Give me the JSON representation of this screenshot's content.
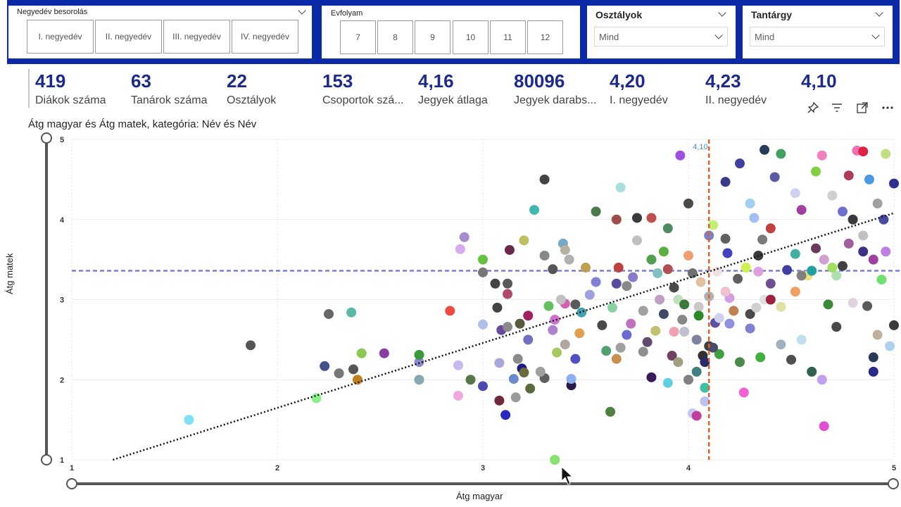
{
  "slicers": {
    "quarter": {
      "title": "Negyedév besorolás",
      "options": [
        "I. negyedév",
        "II. negyedév",
        "III. negyedév",
        "IV. negyedév"
      ]
    },
    "grade": {
      "title": "Evfolyam",
      "options": [
        "7",
        "8",
        "9",
        "10",
        "11",
        "12"
      ]
    },
    "classes": {
      "title": "Osztályok",
      "value": "Mind"
    },
    "subject": {
      "title": "Tantárgy",
      "value": "Mind"
    }
  },
  "kpis": [
    {
      "value": "419",
      "label": "Diákok száma"
    },
    {
      "value": "63",
      "label": "Tanárok száma"
    },
    {
      "value": "22",
      "label": "Osztályok"
    },
    {
      "value": "153",
      "label": "Csoportok szá..."
    },
    {
      "value": "4,16",
      "label": "Jegyek átlaga"
    },
    {
      "value": "80096",
      "label": "Jegyek darabs..."
    },
    {
      "value": "4,20",
      "label": "I. negyedév"
    },
    {
      "value": "4,23",
      "label": "II. negyedév"
    },
    {
      "value": "4,10",
      "label": ""
    }
  ],
  "visual_toolbar": [
    "pin-icon",
    "filter-icon",
    "focus-mode-icon",
    "more-options-icon"
  ],
  "colors": {
    "slicer_bar": "#0a2aa8",
    "kpi_value": "#1b2a8c",
    "avg_x_line": "#e0602a",
    "avg_y_line": "#7b7bd6",
    "trend": "#111111"
  },
  "chart_data": {
    "type": "scatter",
    "title": "Átg magyar és Átg matek, kategória: Név és Név",
    "xlabel": "Átg magyar",
    "ylabel": "Átg matek",
    "xlim": [
      1,
      5
    ],
    "ylim": [
      1,
      5
    ],
    "x_ticks": [
      "1",
      "2",
      "3",
      "4",
      "5"
    ],
    "y_ticks": [
      "1",
      "2",
      "3",
      "4",
      "5"
    ],
    "grid": true,
    "avg_x": {
      "value": 4.1,
      "label": "4,10"
    },
    "avg_y": 3.36,
    "trend_line": {
      "x": [
        1.2,
        5.0
      ],
      "y": [
        1.0,
        4.08
      ]
    },
    "points": [
      [
        1.57,
        1.5,
        "#7ee0f6"
      ],
      [
        1.87,
        2.43,
        "#555555"
      ],
      [
        2.19,
        1.77,
        "#8af08a"
      ],
      [
        2.23,
        2.17,
        "#44508c"
      ],
      [
        2.25,
        2.82,
        "#666666"
      ],
      [
        2.36,
        2.84,
        "#5ab8a8"
      ],
      [
        2.3,
        2.08,
        "#777777"
      ],
      [
        2.37,
        2.13,
        "#555555"
      ],
      [
        2.41,
        2.33,
        "#8cc850"
      ],
      [
        2.39,
        2.0,
        "#c08020"
      ],
      [
        2.52,
        2.33,
        "#8a3ca0"
      ],
      [
        2.69,
        2.22,
        "#8a8ad0"
      ],
      [
        2.69,
        2.31,
        "#3a9a3a"
      ],
      [
        2.69,
        2.0,
        "#88a8b0"
      ],
      [
        2.84,
        2.86,
        "#ee4a44"
      ],
      [
        2.88,
        2.18,
        "#c8b8f0"
      ],
      [
        2.88,
        1.8,
        "#f0a8e0"
      ],
      [
        2.89,
        3.63,
        "#d8a8f0"
      ],
      [
        2.91,
        3.78,
        "#a88ad0"
      ],
      [
        3.0,
        3.5,
        "#66c044"
      ],
      [
        3.0,
        3.34,
        "#777777"
      ],
      [
        3.0,
        2.69,
        "#b0c0ea"
      ],
      [
        3.0,
        1.92,
        "#4a4ab0"
      ],
      [
        2.94,
        2.0,
        "#587848"
      ],
      [
        3.06,
        3.2,
        "#444444"
      ],
      [
        3.07,
        2.9,
        "#444444"
      ],
      [
        3.08,
        2.21,
        "#a8a8d8"
      ],
      [
        3.08,
        1.74,
        "#6e2a3a"
      ],
      [
        3.11,
        1.56,
        "#2a2ac0"
      ],
      [
        3.09,
        2.62,
        "#6a4a9a"
      ],
      [
        3.12,
        2.66,
        "#8a8a8a"
      ],
      [
        3.12,
        3.2,
        "#5a5a5a"
      ],
      [
        3.12,
        3.07,
        "#b04a6a"
      ],
      [
        3.13,
        3.62,
        "#6a2a4a"
      ],
      [
        3.15,
        2.01,
        "#6a8ad0"
      ],
      [
        3.16,
        1.78,
        "#9a9a9a"
      ],
      [
        3.17,
        2.26,
        "#8a8a8a"
      ],
      [
        3.19,
        2.14,
        "#1a1a8a"
      ],
      [
        3.2,
        2.09,
        "#6a6a3a"
      ],
      [
        3.23,
        1.89,
        "#5a6a3a"
      ],
      [
        3.22,
        2.8,
        "#a02060"
      ],
      [
        3.2,
        3.74,
        "#c0c060"
      ],
      [
        3.25,
        4.12,
        "#40b8b0"
      ],
      [
        3.3,
        2.02,
        "#606060"
      ],
      [
        3.3,
        3.55,
        "#888888"
      ],
      [
        3.3,
        4.5,
        "#444444"
      ],
      [
        3.34,
        2.62,
        "#b080d0"
      ],
      [
        3.34,
        3.38,
        "#555555"
      ],
      [
        3.35,
        1.0,
        "#88e070"
      ],
      [
        3.36,
        2.34,
        "#a8c860"
      ],
      [
        3.39,
        3.7,
        "#78a8c8"
      ],
      [
        3.4,
        2.95,
        "#d060b0"
      ],
      [
        3.4,
        3.62,
        "#b8b0a0"
      ],
      [
        3.4,
        2.44,
        "#b0a8a0"
      ],
      [
        3.43,
        1.93,
        "#2a1a4a"
      ],
      [
        3.43,
        2.01,
        "#8ab0f0"
      ],
      [
        3.45,
        2.26,
        "#5050c0"
      ],
      [
        3.48,
        2.84,
        "#40a0b0"
      ],
      [
        3.5,
        3.4,
        "#c0a050"
      ],
      [
        3.55,
        4.1,
        "#4a7a4a"
      ],
      [
        3.55,
        3.22,
        "#8080d8"
      ],
      [
        3.6,
        2.36,
        "#50a070"
      ],
      [
        3.62,
        1.6,
        "#508040"
      ],
      [
        3.65,
        2.26,
        "#c89050"
      ],
      [
        3.67,
        4.4,
        "#a8e0e0"
      ],
      [
        3.65,
        3.2,
        "#5a4aa0"
      ],
      [
        3.65,
        4.0,
        "#a04a4a"
      ],
      [
        3.67,
        2.4,
        "#a0a0a0"
      ],
      [
        3.7,
        3.17,
        "#888888"
      ],
      [
        3.73,
        3.28,
        "#8a7acc"
      ],
      [
        3.75,
        4.02,
        "#3a3a3a"
      ],
      [
        3.75,
        3.74,
        "#c0c0c0"
      ],
      [
        3.78,
        2.35,
        "#909090"
      ],
      [
        3.8,
        2.47,
        "#604a70"
      ],
      [
        3.82,
        2.03,
        "#3a1a5a"
      ],
      [
        3.82,
        4.02,
        "#c05050"
      ],
      [
        3.85,
        3.33,
        "#80c0c0"
      ],
      [
        3.88,
        2.82,
        "#404a6a"
      ],
      [
        3.88,
        3.6,
        "#5ab040"
      ],
      [
        3.9,
        3.89,
        "#508a60"
      ],
      [
        3.9,
        3.38,
        "#b05050"
      ],
      [
        3.9,
        1.96,
        "#60d0e0"
      ],
      [
        3.92,
        2.3,
        "#704060"
      ],
      [
        3.95,
        2.22,
        "#a0a080"
      ],
      [
        3.93,
        2.6,
        "#f0a0b0"
      ],
      [
        3.95,
        3.0,
        "#c0e0c0"
      ],
      [
        3.96,
        4.8,
        "#a050e0"
      ],
      [
        3.98,
        2.6,
        "#c0c0d0"
      ],
      [
        4.0,
        3.55,
        "#f0a070"
      ],
      [
        4.0,
        2.0,
        "#808080"
      ],
      [
        4.0,
        4.2,
        "#4a4a4a"
      ],
      [
        4.02,
        1.58,
        "#c8c8f0"
      ],
      [
        4.04,
        1.55,
        "#c040a0"
      ],
      [
        4.04,
        2.1,
        "#408080"
      ],
      [
        4.04,
        2.5,
        "#8080a0"
      ],
      [
        4.05,
        2.91,
        "#c8c8c8"
      ],
      [
        4.06,
        3.22,
        "#e0c0a0"
      ],
      [
        4.07,
        2.3,
        "#303030"
      ],
      [
        4.08,
        2.22,
        "#2a2a6a"
      ],
      [
        4.08,
        1.9,
        "#40c0a0"
      ],
      [
        4.08,
        1.73,
        "#c0c0f0"
      ],
      [
        4.1,
        2.42,
        "#404040"
      ],
      [
        4.1,
        3.04,
        "#b0b0b0"
      ],
      [
        4.1,
        3.8,
        "#8080c0"
      ],
      [
        4.12,
        3.93,
        "#c0f070"
      ],
      [
        4.13,
        2.71,
        "#6050a0"
      ],
      [
        4.14,
        3.35,
        "#f0e0e0"
      ],
      [
        4.15,
        2.77,
        "#d0d0f0"
      ],
      [
        4.15,
        2.32,
        "#40a040"
      ],
      [
        4.18,
        4.47,
        "#3a3a8a"
      ],
      [
        4.18,
        3.76,
        "#606060"
      ],
      [
        4.19,
        3.58,
        "#4040c0"
      ],
      [
        4.2,
        3.02,
        "#d0a0e0"
      ],
      [
        4.22,
        2.86,
        "#c08050"
      ],
      [
        4.25,
        4.7,
        "#4040a0"
      ],
      [
        4.25,
        2.22,
        "#4a8a4a"
      ],
      [
        4.27,
        1.84,
        "#f060d0"
      ],
      [
        4.28,
        3.4,
        "#d0f050"
      ],
      [
        4.3,
        4.2,
        "#a0d0f0"
      ],
      [
        4.3,
        2.82,
        "#4a4a4a"
      ],
      [
        4.3,
        2.64,
        "#8080d0"
      ],
      [
        4.32,
        4.02,
        "#a0c0f0"
      ],
      [
        4.34,
        3.35,
        "#e0a0e0"
      ],
      [
        4.34,
        3.55,
        "#3a3a3a"
      ],
      [
        4.35,
        2.28,
        "#40b040"
      ],
      [
        4.36,
        3.75,
        "#7a7a7a"
      ],
      [
        4.37,
        3.0,
        "#e0e0e0"
      ],
      [
        4.37,
        4.87,
        "#2a3a5a"
      ],
      [
        4.4,
        3.89,
        "#c04040"
      ],
      [
        4.4,
        3.2,
        "#705090"
      ],
      [
        4.42,
        4.53,
        "#5a5aa0"
      ],
      [
        4.45,
        2.44,
        "#a0b0c0"
      ],
      [
        4.45,
        2.91,
        "#e0e0a0"
      ],
      [
        4.45,
        4.82,
        "#40a060"
      ],
      [
        4.48,
        3.37,
        "#4040a0"
      ],
      [
        4.5,
        2.25,
        "#505050"
      ],
      [
        4.52,
        3.1,
        "#f0a060"
      ],
      [
        4.52,
        4.33,
        "#d0d0f0"
      ],
      [
        4.52,
        3.57,
        "#40b0a0"
      ],
      [
        4.55,
        4.12,
        "#a040a0"
      ],
      [
        4.55,
        2.5,
        "#c0e0f0"
      ],
      [
        4.58,
        3.3,
        "#f0e080"
      ],
      [
        4.6,
        2.1,
        "#306050"
      ],
      [
        4.62,
        3.64,
        "#6a3a5a"
      ],
      [
        4.62,
        4.6,
        "#80d040"
      ],
      [
        4.65,
        2.0,
        "#c0a0f0"
      ],
      [
        4.65,
        4.8,
        "#f080c0"
      ],
      [
        4.66,
        1.42,
        "#e050d0"
      ],
      [
        4.68,
        2.94,
        "#3a8a3a"
      ],
      [
        4.7,
        4.3,
        "#d0d0d0"
      ],
      [
        4.72,
        2.66,
        "#4a4a4a"
      ],
      [
        4.72,
        3.3,
        "#b0e0b0"
      ],
      [
        4.75,
        4.1,
        "#7070d0"
      ],
      [
        4.78,
        4.55,
        "#b03a5a"
      ],
      [
        4.78,
        3.7,
        "#a060a0"
      ],
      [
        4.8,
        2.96,
        "#e0d0e0"
      ],
      [
        4.8,
        4.0,
        "#3a3a3a"
      ],
      [
        4.82,
        4.86,
        "#f070b0"
      ],
      [
        4.85,
        3.8,
        "#c0c0c0"
      ],
      [
        4.87,
        2.92,
        "#5a5a5a"
      ],
      [
        4.88,
        4.5,
        "#4a9ae0"
      ],
      [
        4.9,
        2.1,
        "#2a2a8a"
      ],
      [
        4.9,
        2.28,
        "#2a3a5a"
      ],
      [
        4.92,
        2.56,
        "#c0b0a0"
      ],
      [
        4.92,
        4.2,
        "#a0a0a0"
      ],
      [
        4.94,
        3.25,
        "#70e070"
      ],
      [
        4.95,
        4.0,
        "#4a4aa0"
      ],
      [
        4.96,
        4.82,
        "#c0e080"
      ],
      [
        4.98,
        2.42,
        "#b0d0f0"
      ],
      [
        5.0,
        2.68,
        "#3a3a3a"
      ],
      [
        5.0,
        4.45,
        "#303090"
      ],
      [
        4.96,
        3.6,
        "#c080e0"
      ],
      [
        4.85,
        4.85,
        "#dd2244"
      ],
      [
        4.9,
        3.5,
        "#a040a0"
      ],
      [
        4.85,
        3.6,
        "#403080"
      ],
      [
        4.75,
        3.42,
        "#404040"
      ],
      [
        4.7,
        3.4,
        "#a0e060"
      ],
      [
        4.6,
        3.36,
        "#20a0a0"
      ],
      [
        4.55,
        3.3,
        "#808080"
      ],
      [
        4.66,
        3.5,
        "#d0a0d0"
      ],
      [
        4.4,
        3.0,
        "#a02040"
      ],
      [
        4.33,
        2.9,
        "#d0d0d0"
      ],
      [
        4.24,
        3.26,
        "#606060"
      ],
      [
        4.2,
        2.7,
        "#9090e0"
      ],
      [
        4.18,
        3.1,
        "#f0c0d0"
      ],
      [
        4.12,
        2.4,
        "#4a4a6a"
      ],
      [
        4.05,
        2.8,
        "#2a8a2a"
      ],
      [
        4.02,
        3.33,
        "#707070"
      ],
      [
        3.98,
        2.94,
        "#3a7a3a"
      ],
      [
        3.97,
        2.75,
        "#888888"
      ],
      [
        3.93,
        3.15,
        "#4a4a4a"
      ],
      [
        3.86,
        3.0,
        "#c0a0c0"
      ],
      [
        3.84,
        2.61,
        "#c0c070"
      ],
      [
        3.82,
        3.5,
        "#50a050"
      ],
      [
        3.78,
        2.86,
        "#a0a0a0"
      ],
      [
        3.72,
        2.7,
        "#c070c0"
      ],
      [
        3.7,
        2.56,
        "#6a6ad0"
      ],
      [
        3.66,
        3.4,
        "#c04040"
      ],
      [
        3.63,
        2.9,
        "#8ad0a0"
      ],
      [
        3.58,
        2.68,
        "#4a4a4a"
      ],
      [
        3.52,
        3.06,
        "#a0a0e0"
      ],
      [
        3.47,
        2.58,
        "#e0a050"
      ],
      [
        3.45,
        2.94,
        "#5a5a5a"
      ],
      [
        3.42,
        3.5,
        "#b0b0b0"
      ],
      [
        3.38,
        3.0,
        "#c0c0c0"
      ],
      [
        3.35,
        2.75,
        "#d070d0"
      ],
      [
        3.32,
        2.92,
        "#60c060"
      ],
      [
        3.28,
        2.1,
        "#a0a0a0"
      ],
      [
        3.22,
        2.5,
        "#7070c0"
      ],
      [
        3.18,
        2.7,
        "#5a5a3a"
      ]
    ]
  },
  "cursor": {
    "x": 3.78,
    "y": 0.82
  }
}
